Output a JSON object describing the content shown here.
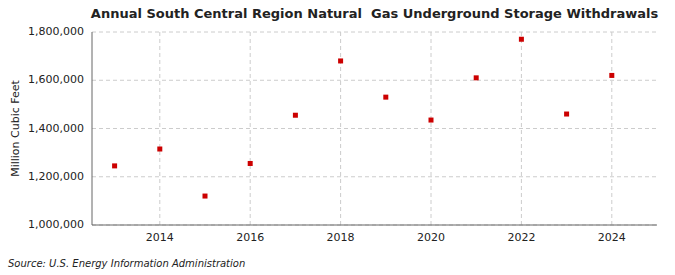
{
  "chart_data": {
    "type": "scatter",
    "title": "Annual South Central Region Natural  Gas Underground Storage Withdrawals",
    "y_label": "Million Cubic Feet",
    "annotations": [
      "Source: U.S. Energy Information Administration"
    ],
    "x": [
      2013,
      2014,
      2015,
      2016,
      2017,
      2018,
      2019,
      2020,
      2021,
      2022,
      2023,
      2024
    ],
    "values": [
      1245000,
      1315000,
      1120000,
      1255000,
      1455000,
      1680000,
      1530000,
      1435000,
      1610000,
      1770000,
      1460000,
      1620000
    ],
    "color": "#cc0000",
    "marker": "square",
    "grid": true,
    "xlim": [
      2012.5,
      2025.0
    ],
    "xticks": [
      2014,
      2016,
      2018,
      2020,
      2022,
      2024
    ],
    "ylim": [
      1000000,
      1800000
    ],
    "yticks": [
      {
        "value": 1000000,
        "label": "1,000,000"
      },
      {
        "value": 1200000,
        "label": "1,200,000"
      },
      {
        "value": 1400000,
        "label": "1,400,000"
      },
      {
        "value": 1600000,
        "label": "1,600,000"
      },
      {
        "value": 1800000,
        "label": "1,800,000"
      }
    ]
  }
}
